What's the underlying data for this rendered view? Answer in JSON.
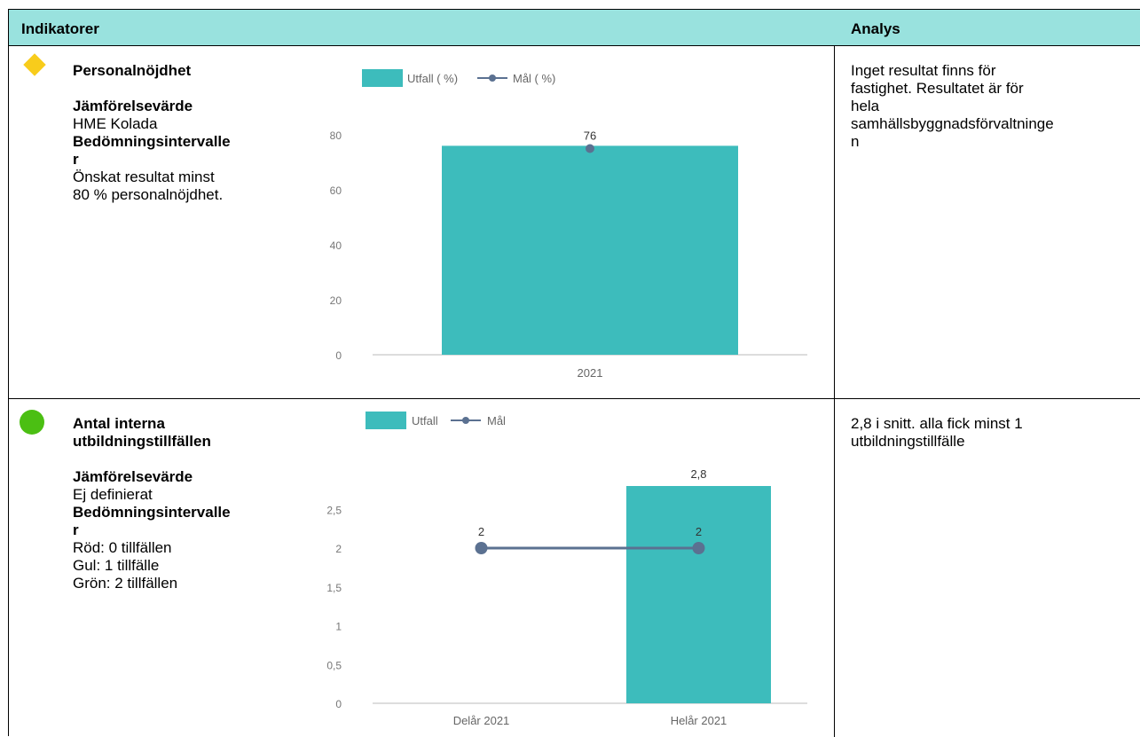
{
  "header": {
    "col1": "Indikatorer",
    "col2": "Analys"
  },
  "rows": [
    {
      "status": "yellow",
      "status_color": "#f8cc1b",
      "title": "Personalnöjdhet",
      "jamforelse_label": "Jämförelsevärde",
      "jamforelse_value": "HME Kolada",
      "bedomning_label_line1": "Bedömningsintervalle",
      "bedomning_label_line2": "r",
      "bedomning_lines": [
        "Önskat resultat minst",
        "80 % personalnöjdhet."
      ],
      "analys_lines": [
        "Inget resultat finns för",
        "fastighet. Resultatet är för",
        "hela",
        "samhällsbyggnadsförvaltninge",
        "n"
      ]
    },
    {
      "status": "green",
      "status_color": "#4bbf13",
      "title_line1": "Antal interna",
      "title_line2": "utbildningstillfällen",
      "jamforelse_label": "Jämförelsevärde",
      "jamforelse_value": "Ej definierat",
      "bedomning_label_line1": "Bedömningsintervalle",
      "bedomning_label_line2": "r",
      "bedomning_lines": [
        "Röd: 0 tillfällen",
        "Gul: 1 tillfälle",
        "Grön: 2 tillfällen"
      ],
      "analys_lines": [
        "2,8 i snitt. alla fick minst 1",
        "utbildningstillfälle"
      ]
    }
  ],
  "chart_data": [
    {
      "type": "bar",
      "categories": [
        "2021"
      ],
      "series": [
        {
          "name": "Utfall ( %)",
          "kind": "bar",
          "values": [
            76
          ]
        },
        {
          "name": "Mål ( %)",
          "kind": "line",
          "values": [
            75
          ]
        }
      ],
      "data_labels": [
        "76"
      ],
      "yticks": [
        "0",
        "20",
        "40",
        "60",
        "80"
      ],
      "ylim": [
        0,
        80
      ],
      "legend_position": "top",
      "colors": {
        "bar": "#3dbcbc",
        "line": "#5b7191"
      }
    },
    {
      "type": "bar",
      "categories": [
        "Delår 2021",
        "Helår 2021"
      ],
      "series": [
        {
          "name": "Utfall",
          "kind": "bar",
          "values": [
            null,
            2.8
          ]
        },
        {
          "name": "Mål",
          "kind": "line",
          "values": [
            2,
            2
          ]
        }
      ],
      "bar_labels": [
        "",
        "2,8"
      ],
      "line_labels": [
        "2",
        "2"
      ],
      "yticks": [
        "0",
        "0,5",
        "1",
        "1,5",
        "2",
        "2,5"
      ],
      "ylim": [
        0,
        2.8
      ],
      "legend_position": "top",
      "colors": {
        "bar": "#3dbcbc",
        "line": "#5b7191"
      }
    }
  ]
}
